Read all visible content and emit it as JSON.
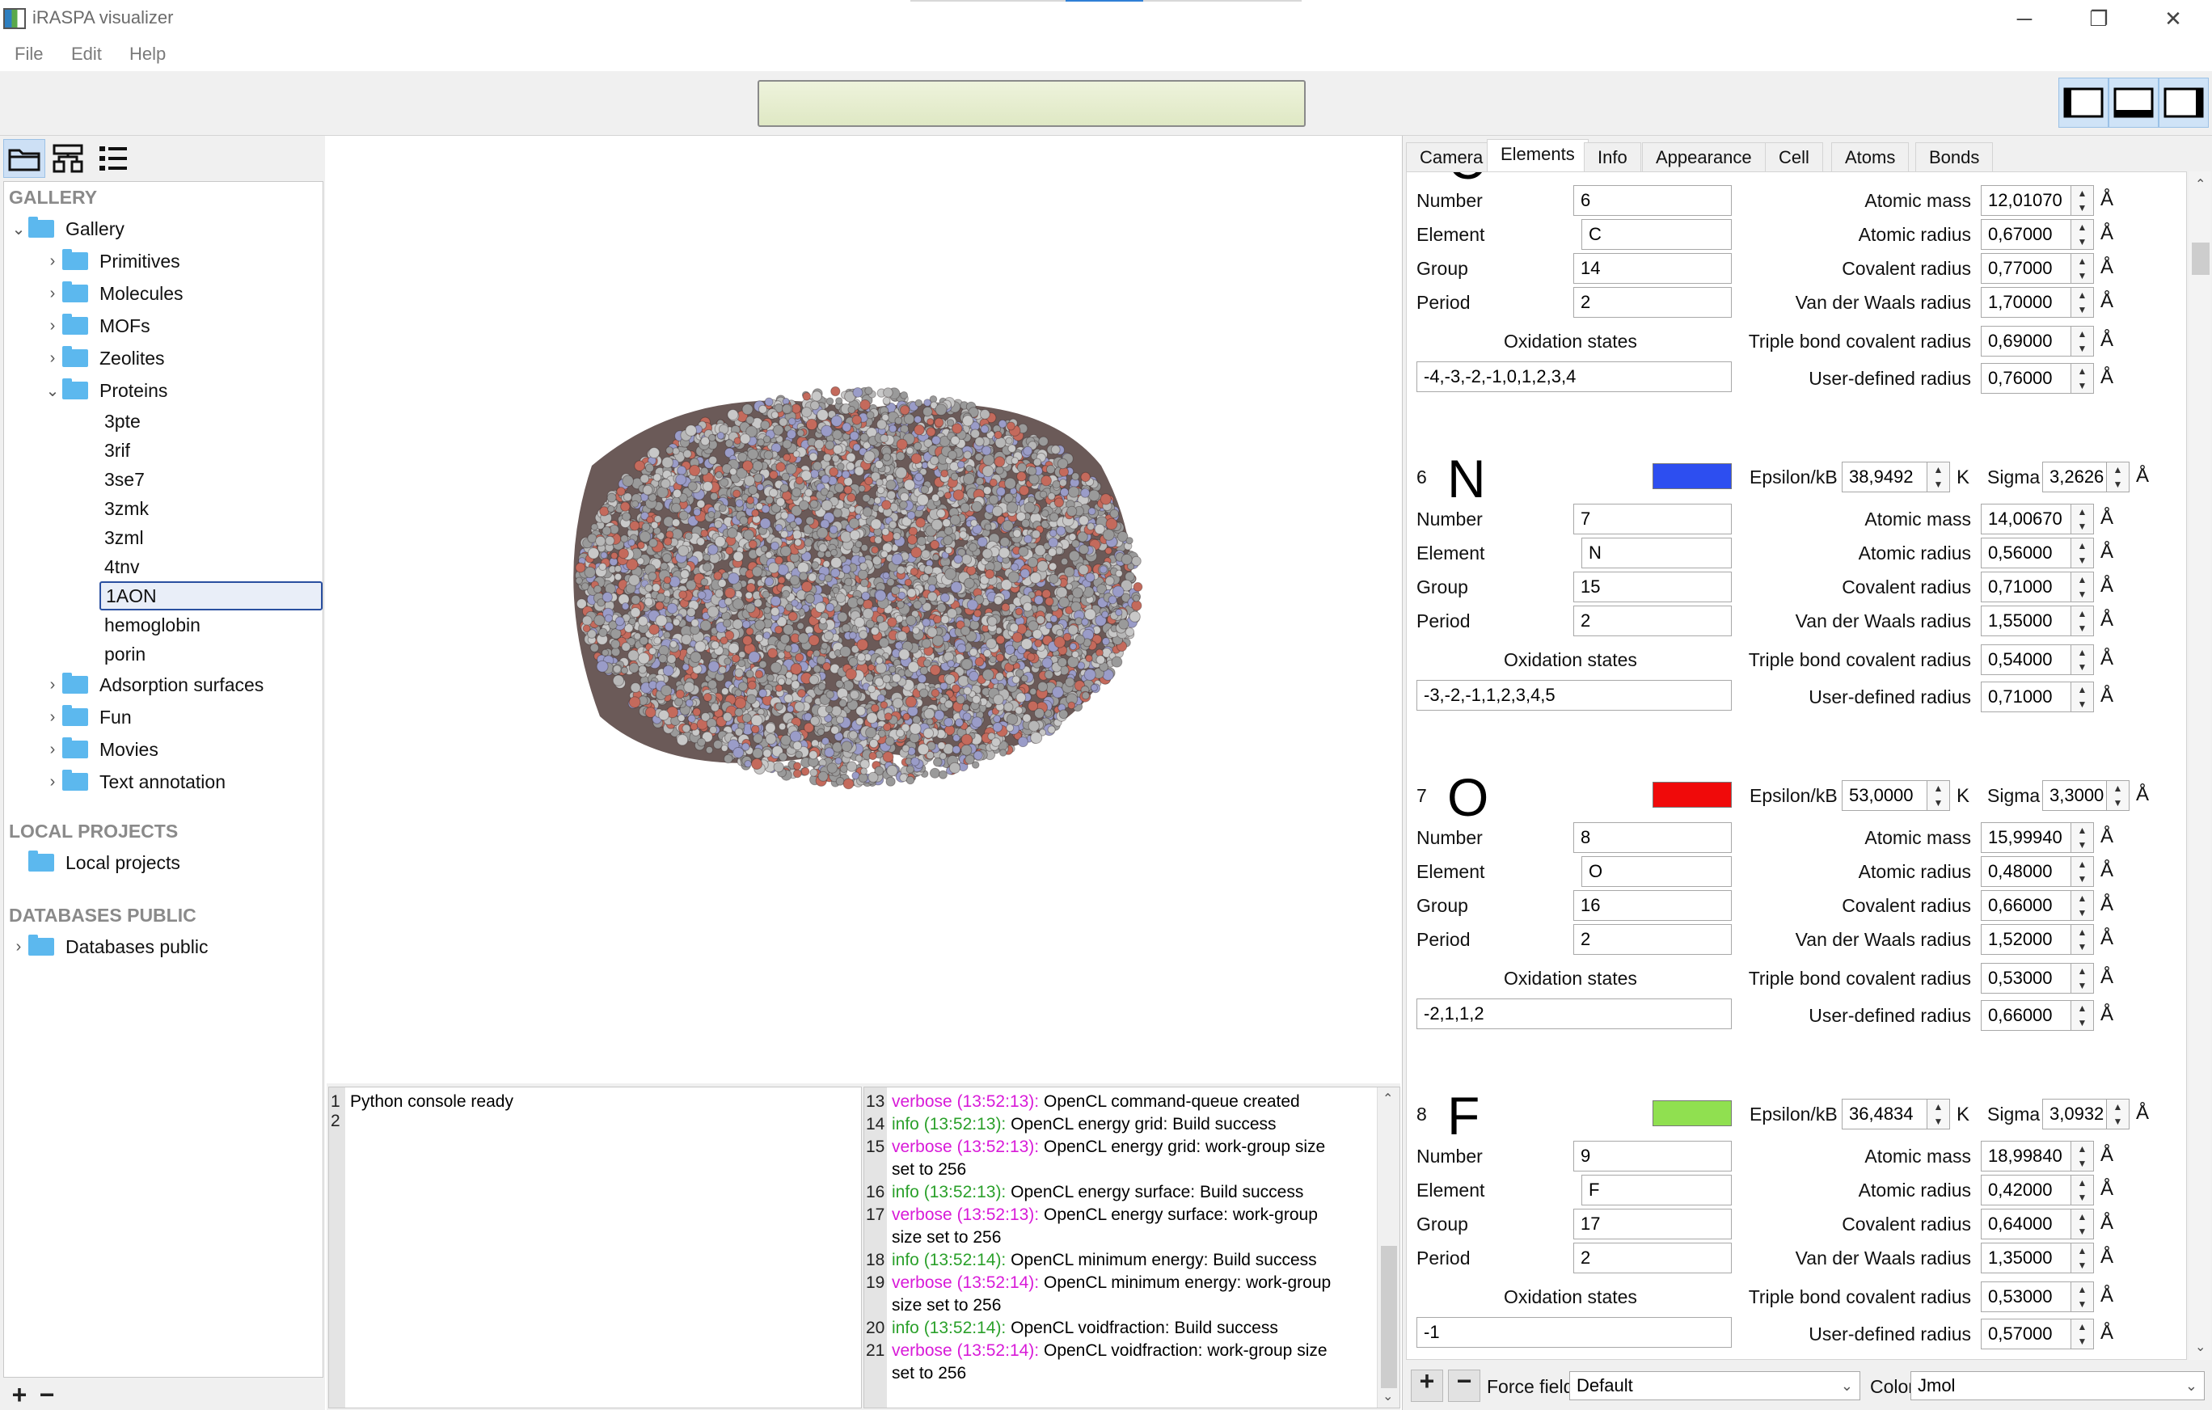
{
  "window": {
    "title": "iRASPA visualizer",
    "minimize_glyph": "─",
    "restore_glyph": "❐",
    "close_glyph": "✕"
  },
  "menu": [
    "File",
    "Edit",
    "Help"
  ],
  "toolbar": {
    "status_text": ""
  },
  "gallery": {
    "section": "GALLERY",
    "root": "Gallery",
    "folders": [
      "Primitives",
      "Molecules",
      "MOFs",
      "Zeolites",
      "Proteins"
    ],
    "protein_items": [
      "3pte",
      "3rif",
      "3se7",
      "3zmk",
      "3zml",
      "4tnv",
      "1AON",
      "hemoglobin",
      "porin"
    ],
    "selected": "1AON",
    "more_folders": [
      "Adsorption surfaces",
      "Fun",
      "Movies",
      "Text annotation"
    ]
  },
  "local": {
    "section": "LOCAL PROJECTS",
    "folder": "Local projects"
  },
  "databases": {
    "section": "DATABASES PUBLIC",
    "folder": "Databases public"
  },
  "python_console": {
    "lines": [
      "Python console ready",
      ""
    ]
  },
  "log_console": {
    "entries": [
      {
        "n": "13",
        "level": "verbose",
        "time": "(13:52:13):",
        "msg": "OpenCL command-queue created",
        "cont": ""
      },
      {
        "n": "14",
        "level": "info",
        "time": "(13:52:13):",
        "msg": "OpenCL energy grid: Build success",
        "cont": ""
      },
      {
        "n": "15",
        "level": "verbose",
        "time": "(13:52:13):",
        "msg": "OpenCL energy grid: work-group size",
        "cont": "set to 256"
      },
      {
        "n": "16",
        "level": "info",
        "time": "(13:52:13):",
        "msg": "OpenCL energy surface: Build success",
        "cont": ""
      },
      {
        "n": "17",
        "level": "verbose",
        "time": "(13:52:13):",
        "msg": "OpenCL energy surface: work-group",
        "cont": "size set to 256"
      },
      {
        "n": "18",
        "level": "info",
        "time": "(13:52:14):",
        "msg": "OpenCL minimum energy: Build success",
        "cont": ""
      },
      {
        "n": "19",
        "level": "verbose",
        "time": "(13:52:14):",
        "msg": "OpenCL minimum energy: work-group",
        "cont": "size set to 256"
      },
      {
        "n": "20",
        "level": "info",
        "time": "(13:52:14):",
        "msg": "OpenCL voidfraction: Build success",
        "cont": ""
      },
      {
        "n": "21",
        "level": "verbose",
        "time": "(13:52:14):",
        "msg": "OpenCL voidfraction: work-group size",
        "cont": "set to 256"
      }
    ]
  },
  "inspector": {
    "tabs": [
      "Camera",
      "Elements",
      "Info",
      "Appearance",
      "Cell",
      "Atoms",
      "Bonds"
    ],
    "active_tab": "Elements",
    "labels": {
      "number": "Number",
      "element": "Element",
      "group": "Group",
      "period": "Period",
      "oxidation": "Oxidation states",
      "atomic_mass": "Atomic mass",
      "atomic_radius": "Atomic radius",
      "covalent_radius": "Covalent radius",
      "vdw_radius": "Van der Waals radius",
      "triple_bond": "Triple bond covalent radius",
      "user_radius": "User-defined radius",
      "epsilon": "Epsilon/kB",
      "sigma": "Sigma",
      "unit_k": "K",
      "unit_a": "Å"
    },
    "elements": [
      {
        "index": "",
        "symbol": "C",
        "color": "#888888",
        "epsilon": "",
        "sigma": "",
        "number": "6",
        "element": "C",
        "group": "14",
        "period": "2",
        "oxidation": "-4,-3,-2,-1,0,1,2,3,4",
        "atomic_mass": "12,01070",
        "atomic_radius": "0,67000",
        "covalent_radius": "0,77000",
        "vdw_radius": "1,70000",
        "triple_bond": "0,69000",
        "user_radius": "0,76000"
      },
      {
        "index": "6",
        "symbol": "N",
        "color": "#2d4ef0",
        "epsilon": "38,9492",
        "sigma": "3,2626",
        "number": "7",
        "element": "N",
        "group": "15",
        "period": "2",
        "oxidation": "-3,-2,-1,1,2,3,4,5",
        "atomic_mass": "14,00670",
        "atomic_radius": "0,56000",
        "covalent_radius": "0,71000",
        "vdw_radius": "1,55000",
        "triple_bond": "0,54000",
        "user_radius": "0,71000"
      },
      {
        "index": "7",
        "symbol": "O",
        "color": "#f00a0a",
        "epsilon": "53,0000",
        "sigma": "3,3000",
        "number": "8",
        "element": "O",
        "group": "16",
        "period": "2",
        "oxidation": "-2,1,1,2",
        "atomic_mass": "15,99940",
        "atomic_radius": "0,48000",
        "covalent_radius": "0,66000",
        "vdw_radius": "1,52000",
        "triple_bond": "0,53000",
        "user_radius": "0,66000"
      },
      {
        "index": "8",
        "symbol": "F",
        "color": "#90e050",
        "epsilon": "36,4834",
        "sigma": "3,0932",
        "number": "9",
        "element": "F",
        "group": "17",
        "period": "2",
        "oxidation": "-1",
        "atomic_mass": "18,99840",
        "atomic_radius": "0,42000",
        "covalent_radius": "0,64000",
        "vdw_radius": "1,35000",
        "triple_bond": "0,53000",
        "user_radius": "0,57000"
      }
    ],
    "bottom": {
      "forcefield_label": "Force field",
      "forcefield_value": "Default",
      "color_label": "Color",
      "color_value": "Jmol"
    }
  },
  "colors": {
    "atom_oxygen": "#c46a5c",
    "atom_carbon": "#9a9a9a",
    "atom_nitrogen": "#9a9cc8",
    "accent": "#cde0f5"
  }
}
